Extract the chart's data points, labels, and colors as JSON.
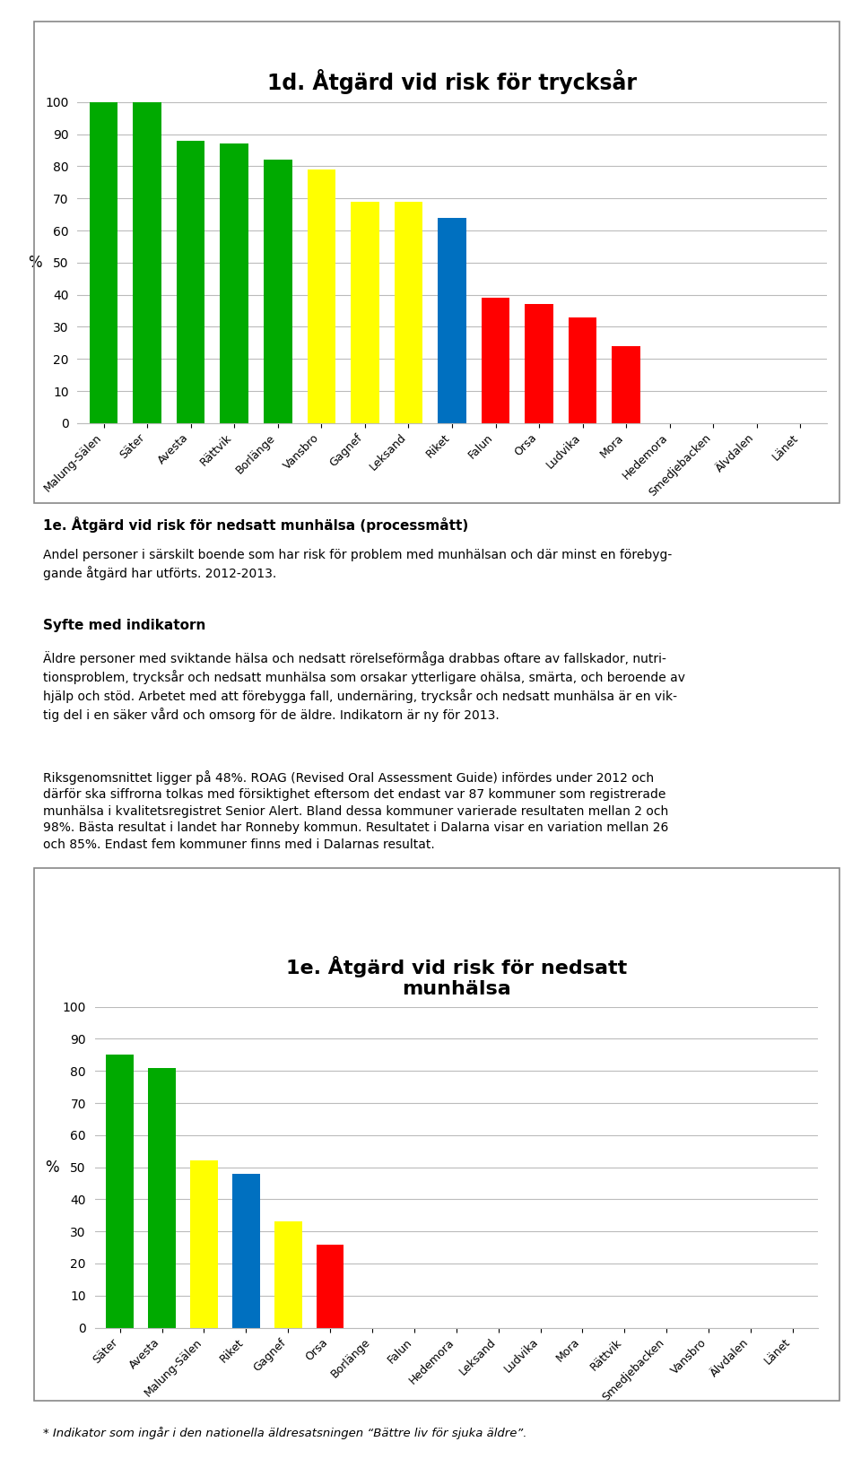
{
  "chart1": {
    "title": "1d. Åtgärd vid risk för trycksår",
    "categories": [
      "Malung-Sälen",
      "Säter",
      "Avesta",
      "Rättvik",
      "Borlänge",
      "Vansbro",
      "Gagnef",
      "Leksand",
      "Riket",
      "Falun",
      "Orsa",
      "Ludvika",
      "Mora",
      "Hedemora",
      "Smedjebacken",
      "Älvdalen",
      "Länet"
    ],
    "values": [
      100,
      100,
      88,
      87,
      82,
      79,
      69,
      69,
      64,
      39,
      37,
      33,
      24,
      0,
      0,
      0,
      0
    ],
    "colors": [
      "#00AA00",
      "#00AA00",
      "#00AA00",
      "#00AA00",
      "#00AA00",
      "#FFFF00",
      "#FFFF00",
      "#FFFF00",
      "#0070C0",
      "#FF0000",
      "#FF0000",
      "#FF0000",
      "#FF0000",
      "#FF0000",
      "#FF0000",
      "#FF0000",
      "#FF0000"
    ],
    "ylim": [
      0,
      100
    ],
    "yticks": [
      0,
      10,
      20,
      30,
      40,
      50,
      60,
      70,
      80,
      90,
      100
    ],
    "ylabel": "%"
  },
  "chart2": {
    "title": "1e. Åtgärd vid risk för nedsatt\nmunhälsa",
    "categories": [
      "Säter",
      "Avesta",
      "Malung-Sälen",
      "Riket",
      "Gagnef",
      "Orsa",
      "Borlänge",
      "Falun",
      "Hedemora",
      "Leksand",
      "Ludvika",
      "Mora",
      "Rättvik",
      "Smedjebacken",
      "Vansbro",
      "Älvdalen",
      "Länet"
    ],
    "values": [
      85,
      81,
      52,
      48,
      33,
      26,
      0,
      0,
      0,
      0,
      0,
      0,
      0,
      0,
      0,
      0,
      0
    ],
    "colors": [
      "#00AA00",
      "#00AA00",
      "#FFFF00",
      "#0070C0",
      "#FFFF00",
      "#FF0000",
      "#FF0000",
      "#FF0000",
      "#FF0000",
      "#FF0000",
      "#FF0000",
      "#FF0000",
      "#FF0000",
      "#FF0000",
      "#FF0000",
      "#FF0000",
      "#FF0000"
    ],
    "ylim": [
      0,
      100
    ],
    "yticks": [
      0,
      10,
      20,
      30,
      40,
      50,
      60,
      70,
      80,
      90,
      100
    ],
    "ylabel": "%"
  },
  "text1_bold": "1e. Åtgärd vid risk för nedsatt munhälsa (processmått)",
  "text1_normal": "Andel personer i särskilt boende som har risk för problem med munhälsan och där minst en förebyg-\ngande åtgärd har utförts. 2012-2013.",
  "text2_bold": "Syfte med indikatorn",
  "text2_normal": "Äldre personer med sviktande hälsa och nedsatt rörelseförmåga drabbas oftare av fallskador, nutri-\ntionsproblem, trycksår och nedsatt munhälsa som orsakar ytterligare ohälsa, smärta, och beroende av\nhjälp och stöd. Arbetet med att förebygga fall, undernäring, trycksår och nedsatt munhälsa är en vik-\ntig del i en säker vård och omsorg för de äldre. Indikatorn är ny för 2013.",
  "text3_normal": "Riksgenomsnittet ligger på 48%. ROAG (Revised Oral Assessment Guide) infördes under 2012 och\ndärför ska siffrorna tolkas med försiktighet eftersom det endast var 87 kommuner som registrerade\nmunhälsa i kvalitetsregistret Senior Alert. Bland dessa kommuner varierade resultaten mellan 2 och\n98%. Bästa resultat i landet har Ronneby kommun. Resultatet i Dalarna visar en variation mellan 26\noch 85%. Endast fem kommuner finns med i Dalarnas resultat.",
  "footnote": "* Indikator som ingår i den nationella äldresatsningen “Bättre liv för sjuka äldre”.",
  "background_color": "#FFFFFF",
  "grid_color": "#BBBBBB",
  "bar_width": 0.65
}
